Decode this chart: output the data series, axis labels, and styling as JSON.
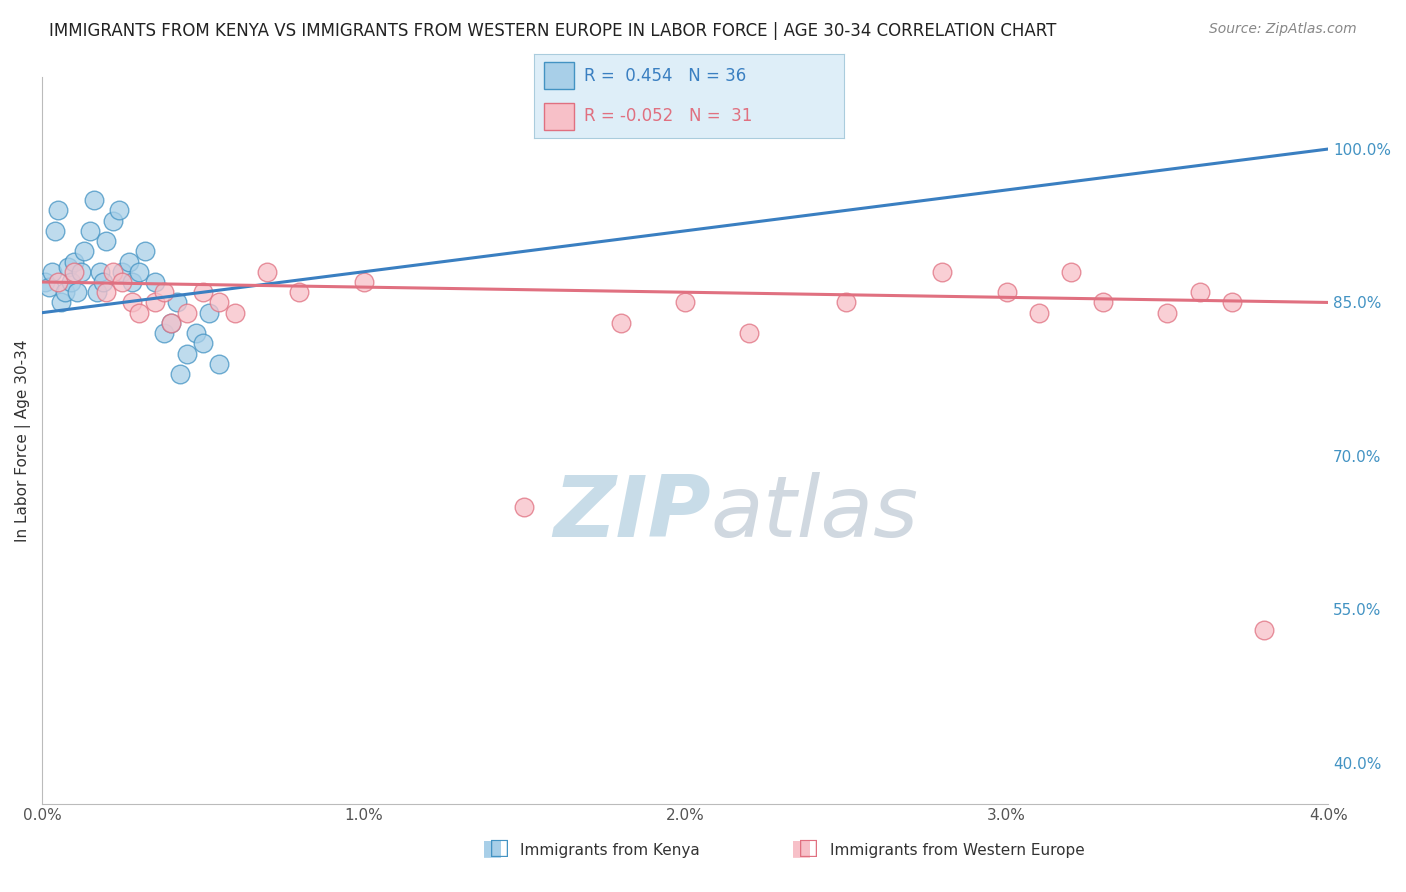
{
  "title": "IMMIGRANTS FROM KENYA VS IMMIGRANTS FROM WESTERN EUROPE IN LABOR FORCE | AGE 30-34 CORRELATION CHART",
  "source": "Source: ZipAtlas.com",
  "xlabel_ticks": [
    "0.0%",
    "1.0%",
    "2.0%",
    "3.0%",
    "4.0%"
  ],
  "xlabel_vals": [
    0.0,
    1.0,
    2.0,
    3.0,
    4.0
  ],
  "ylabel_ticks": [
    "40.0%",
    "55.0%",
    "70.0%",
    "85.0%",
    "100.0%"
  ],
  "ylabel_vals": [
    40.0,
    55.0,
    70.0,
    85.0,
    100.0
  ],
  "ylabel_label": "In Labor Force | Age 30-34",
  "xmin": 0.0,
  "xmax": 4.0,
  "ymin": 36.0,
  "ymax": 107.0,
  "kenya_color": "#a8cfe8",
  "kenya_edge": "#4393c3",
  "western_color": "#f7c0c8",
  "western_edge": "#e07080",
  "kenya_R": 0.454,
  "kenya_N": 36,
  "western_R": -0.052,
  "western_N": 31,
  "trend_blue": "#3a7fc1",
  "trend_pink": "#e07080",
  "kenya_x": [
    0.01,
    0.02,
    0.03,
    0.04,
    0.05,
    0.06,
    0.07,
    0.08,
    0.09,
    0.1,
    0.11,
    0.12,
    0.13,
    0.15,
    0.16,
    0.17,
    0.18,
    0.19,
    0.2,
    0.22,
    0.24,
    0.25,
    0.27,
    0.28,
    0.3,
    0.32,
    0.35,
    0.38,
    0.4,
    0.42,
    0.43,
    0.45,
    0.48,
    0.5,
    0.52,
    0.55
  ],
  "kenya_y": [
    87.0,
    86.5,
    88.0,
    92.0,
    94.0,
    85.0,
    86.0,
    88.5,
    87.0,
    89.0,
    86.0,
    88.0,
    90.0,
    92.0,
    95.0,
    86.0,
    88.0,
    87.0,
    91.0,
    93.0,
    94.0,
    88.0,
    89.0,
    87.0,
    88.0,
    90.0,
    87.0,
    82.0,
    83.0,
    85.0,
    78.0,
    80.0,
    82.0,
    81.0,
    84.0,
    79.0
  ],
  "western_x": [
    0.05,
    0.1,
    0.2,
    0.22,
    0.25,
    0.28,
    0.3,
    0.35,
    0.38,
    0.4,
    0.45,
    0.5,
    0.55,
    0.6,
    0.7,
    0.8,
    1.0,
    1.5,
    1.8,
    2.0,
    2.2,
    2.5,
    2.8,
    3.0,
    3.1,
    3.2,
    3.3,
    3.5,
    3.6,
    3.7,
    3.8
  ],
  "western_y": [
    87.0,
    88.0,
    86.0,
    88.0,
    87.0,
    85.0,
    84.0,
    85.0,
    86.0,
    83.0,
    84.0,
    86.0,
    85.0,
    84.0,
    88.0,
    86.0,
    87.0,
    65.0,
    83.0,
    85.0,
    82.0,
    85.0,
    88.0,
    86.0,
    84.0,
    88.0,
    85.0,
    84.0,
    86.0,
    85.0,
    53.0
  ],
  "background_color": "#ffffff",
  "grid_color": "#cccccc",
  "watermark_color": "#e0e8f0",
  "legend_box_color": "#deeef8",
  "legend_box_edge": "#aaccdd"
}
